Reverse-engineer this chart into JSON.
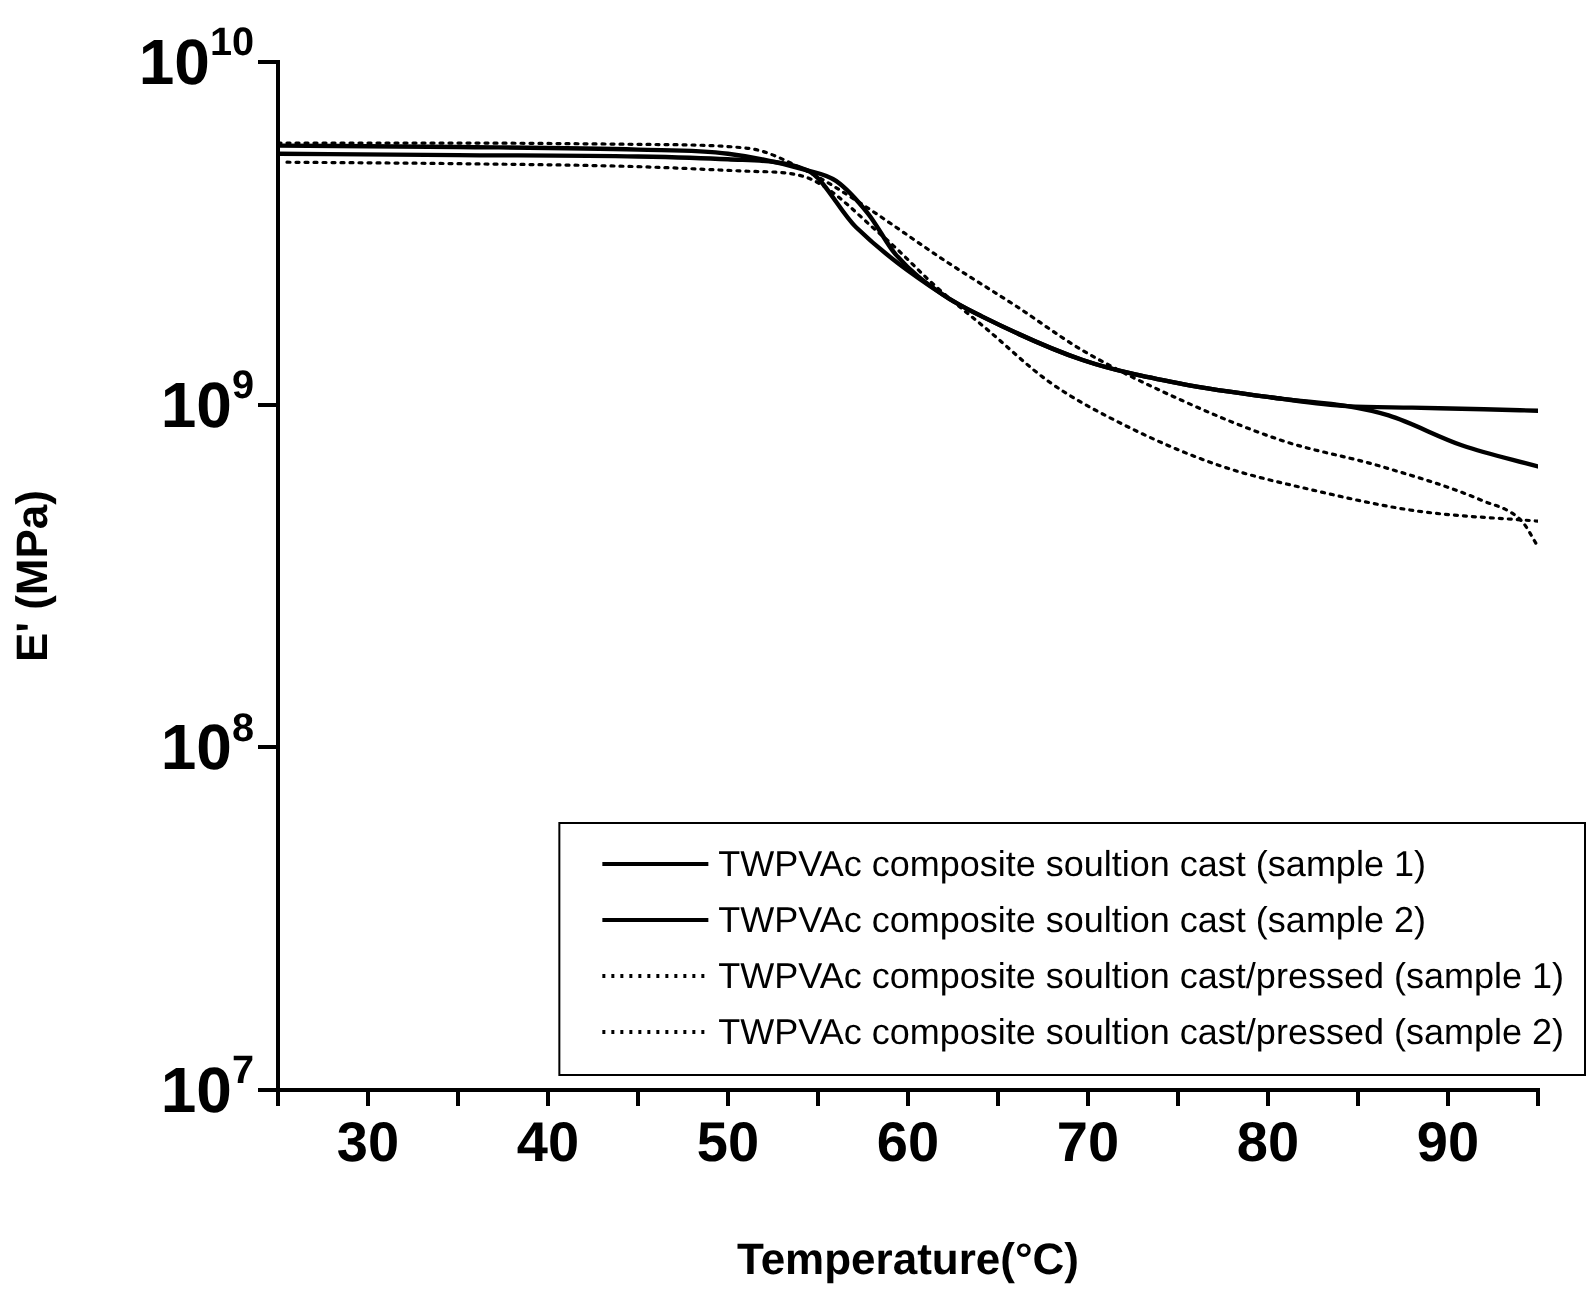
{
  "chart_data": {
    "type": "line",
    "xlabel": "Temperature(°C)",
    "ylabel": "E' (MPa)",
    "log": "y",
    "xlim": [
      25,
      95
    ],
    "xticks": [
      {
        "value": 25,
        "label": null
      },
      30,
      {
        "value": 35,
        "label": null
      },
      40,
      {
        "value": 45,
        "label": null
      },
      50,
      {
        "value": 55,
        "label": null
      },
      60,
      {
        "value": 65,
        "label": null
      },
      70,
      {
        "value": 75,
        "label": null
      },
      80,
      {
        "value": 85,
        "label": null
      },
      90,
      {
        "value": 95,
        "label": null
      }
    ],
    "ylim": [
      10000000,
      10000000000
    ],
    "yticks": [
      {
        "value": 10000000,
        "label": "10$^{7}$"
      },
      {
        "value": 100000000,
        "label": "10$^{8}$"
      },
      {
        "value": 1000000000,
        "label": "10$^{9}$"
      },
      {
        "value": 10000000000,
        "label": "10$^{10}$"
      }
    ],
    "grid": false,
    "legend": "bottom",
    "marker": "none",
    "series": [
      {
        "name": "TWPVAc composite soultion cast (sample 1)",
        "color": "#000000",
        "line_style": "solid",
        "x": [
          25,
          35,
          45,
          50,
          54.4,
          56,
          57.8,
          59.3,
          61.9,
          64.1,
          69.7,
          75.2,
          80.8,
          84.4,
          88,
          92,
          95
        ],
        "values": [
          5700000000,
          5650000000,
          5550000000,
          5400000000,
          4830000000,
          4500000000,
          3600000000,
          2750000000,
          2100000000,
          1810000000,
          1350000000,
          1150000000,
          1040000000,
          990000000,
          980000000,
          970000000,
          960000000
        ]
      },
      {
        "name": "TWPVAc composite soultion cast (sample 2)",
        "color": "#000000",
        "line_style": "solid",
        "x": [
          25,
          35,
          45,
          50,
          54.4,
          57.1,
          61.9,
          64.1,
          69.7,
          75.2,
          80.8,
          84.4,
          86.7,
          90.8,
          95
        ],
        "values": [
          5400000000,
          5350000000,
          5300000000,
          5200000000,
          4830000000,
          3300000000,
          2100000000,
          1810000000,
          1350000000,
          1150000000,
          1040000000,
          990000000,
          930000000,
          760000000,
          660000000
        ]
      },
      {
        "name": "TWPVAc composite soultion cast/pressed (sample 1)",
        "color": "#000000",
        "line_style": "dotted",
        "x": [
          25,
          35,
          45,
          51.1,
          54.4,
          57.1,
          62.2,
          66,
          69.7,
          75.2,
          80.8,
          86.3,
          91.9,
          94.1,
          95
        ],
        "values": [
          5800000000,
          5800000000,
          5750000000,
          5600000000,
          4800000000,
          3950000000,
          2600000000,
          1940000000,
          1440000000,
          1030000000,
          785000000,
          660000000,
          525000000,
          457000000,
          385000000
        ]
      },
      {
        "name": "TWPVAc composite soultion cast/pressed (sample 2)",
        "color": "#000000",
        "line_style": "dotted",
        "x": [
          25.5,
          35,
          45,
          51.1,
          54.1,
          58.6,
          61.6,
          64.5,
          67.8,
          71.5,
          77.1,
          82.7,
          88.2,
          95
        ],
        "values": [
          5100000000,
          5050000000,
          4950000000,
          4800000000,
          4650000000,
          3100000000,
          2200000000,
          1640000000,
          1170000000,
          900000000,
          670000000,
          560000000,
          490000000,
          457000000
        ]
      }
    ]
  }
}
